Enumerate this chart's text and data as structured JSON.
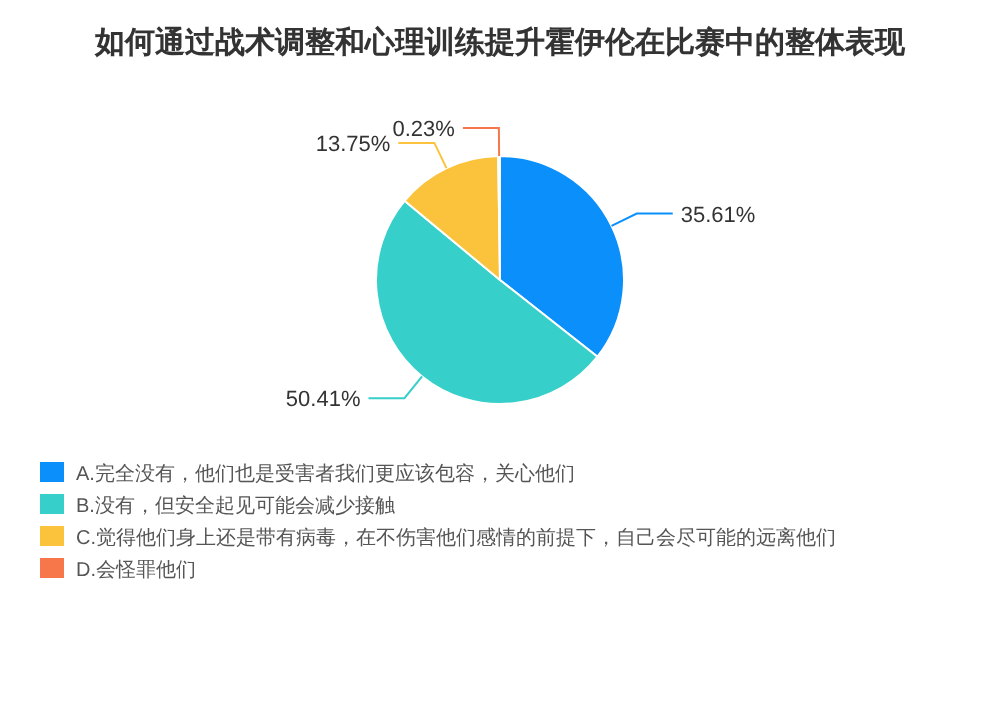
{
  "chart_data": {
    "type": "pie",
    "title": "如何通过战术调整和心理训练提升霍伊伦在比赛中的整体表现",
    "categories": [
      "A.完全没有，他们也是受害者我们更应该包容，关心他们",
      "B.没有，但安全起见可能会减少接触",
      "C.觉得他们身上还是带有病毒，在不伤害他们感情的前提下，自己会尽可能的远离他们",
      "D.会怪罪他们"
    ],
    "values": [
      35.61,
      50.41,
      13.75,
      0.23
    ],
    "colors": [
      "#0b90fb",
      "#36cfc9",
      "#fbc33c",
      "#f7774a"
    ],
    "value_labels": [
      "35.61%",
      "50.41%",
      "13.75%",
      "0.23%"
    ],
    "legend": "bottom"
  }
}
